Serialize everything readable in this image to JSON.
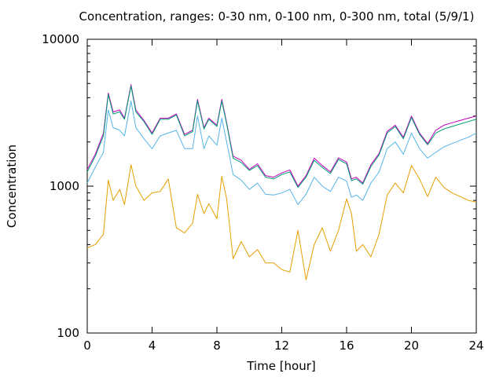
{
  "chart_data": {
    "type": "line",
    "title": "Concentration, ranges: 0-30 nm, 0-100 nm, 0-300 nm, total (5/9/1)",
    "xlabel": "Time [hour]",
    "ylabel": "Concentration",
    "xlim": [
      0,
      24
    ],
    "ylim": [
      100,
      10000
    ],
    "yscale": "log",
    "grid": false,
    "legend": "none",
    "x_ticks": [
      0,
      4,
      8,
      12,
      16,
      20,
      24
    ],
    "x_tick_labels": [
      "0",
      "4",
      "8",
      "12",
      "16",
      "20",
      "24"
    ],
    "y_ticks": [
      100,
      1000,
      10000
    ],
    "y_tick_labels": [
      "100",
      "1000",
      "10000"
    ],
    "x": [
      0,
      0.5,
      1,
      1.3,
      1.6,
      2,
      2.3,
      2.7,
      3,
      3.5,
      4,
      4.5,
      5,
      5.5,
      6,
      6.5,
      6.8,
      7.2,
      7.5,
      8,
      8.3,
      8.6,
      9,
      9.5,
      10,
      10.5,
      11,
      11.5,
      12,
      12.5,
      13,
      13.5,
      14,
      14.5,
      15,
      15.5,
      16,
      16.3,
      16.6,
      17,
      17.5,
      18,
      18.5,
      19,
      19.5,
      20,
      20.5,
      21,
      21.5,
      22,
      22.5,
      23,
      23.5,
      24
    ],
    "series": [
      {
        "color": "#c000c0",
        "values": [
          1300,
          1650,
          2300,
          4300,
          3200,
          3300,
          2900,
          4900,
          3300,
          2800,
          2300,
          2900,
          2900,
          3100,
          2250,
          2400,
          3900,
          2500,
          2900,
          2600,
          3900,
          2700,
          1600,
          1500,
          1300,
          1420,
          1180,
          1150,
          1230,
          1290,
          1000,
          1180,
          1550,
          1380,
          1250,
          1560,
          1460,
          1120,
          1150,
          1050,
          1400,
          1670,
          2360,
          2600,
          2150,
          3000,
          2300,
          1950,
          2400,
          2600,
          2700,
          2800,
          2900,
          3000
        ]
      },
      {
        "color": "#009e73",
        "values": [
          1250,
          1600,
          2200,
          4200,
          3100,
          3200,
          2850,
          4800,
          3200,
          2750,
          2250,
          2850,
          2850,
          3050,
          2200,
          2350,
          3800,
          2450,
          2850,
          2550,
          3800,
          2650,
          1550,
          1450,
          1280,
          1380,
          1150,
          1120,
          1200,
          1250,
          980,
          1150,
          1500,
          1340,
          1220,
          1520,
          1420,
          1090,
          1120,
          1030,
          1360,
          1630,
          2300,
          2550,
          2100,
          2930,
          2250,
          1910,
          2300,
          2450,
          2550,
          2650,
          2750,
          2850
        ]
      },
      {
        "color": "#56b4e9",
        "values": [
          1050,
          1350,
          1700,
          3300,
          2500,
          2400,
          2200,
          3800,
          2500,
          2100,
          1800,
          2200,
          2300,
          2400,
          1800,
          1800,
          3000,
          1800,
          2200,
          1900,
          2900,
          2000,
          1200,
          1100,
          950,
          1050,
          880,
          870,
          900,
          950,
          750,
          880,
          1150,
          1000,
          920,
          1150,
          1080,
          840,
          870,
          800,
          1050,
          1250,
          1800,
          2000,
          1650,
          2300,
          1800,
          1550,
          1700,
          1850,
          1950,
          2050,
          2150,
          2300
        ]
      },
      {
        "color": "#e69f00",
        "values": [
          380,
          400,
          470,
          1100,
          800,
          950,
          750,
          1400,
          1000,
          800,
          900,
          920,
          1120,
          520,
          480,
          560,
          880,
          650,
          760,
          600,
          1170,
          820,
          320,
          420,
          330,
          370,
          300,
          300,
          270,
          260,
          500,
          230,
          400,
          520,
          360,
          500,
          820,
          650,
          360,
          400,
          330,
          470,
          870,
          1050,
          900,
          1380,
          1120,
          850,
          1150,
          980,
          900,
          850,
          800,
          780
        ]
      }
    ]
  }
}
